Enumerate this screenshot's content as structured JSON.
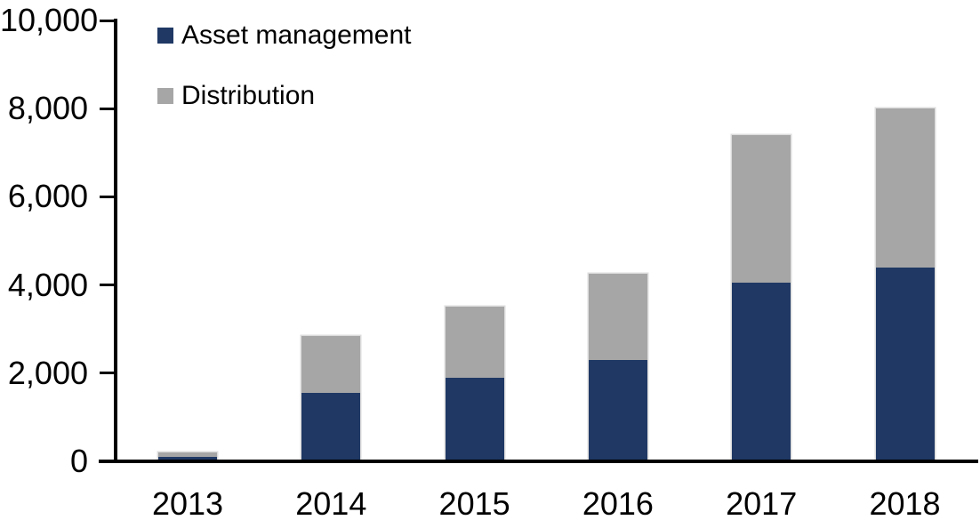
{
  "chart_data": {
    "type": "bar",
    "stacked": true,
    "title": "",
    "categories": [
      "2013",
      "2014",
      "2015",
      "2016",
      "2017",
      "2018"
    ],
    "series": [
      {
        "name": "Asset management",
        "color": "#1F3864",
        "values": [
          100,
          1550,
          1900,
          2300,
          4050,
          4400
        ]
      },
      {
        "name": "Distribution",
        "color": "#A6A6A6",
        "values": [
          100,
          1300,
          1600,
          1950,
          3350,
          3600
        ]
      }
    ],
    "totals": [
      200,
      2850,
      3500,
      4250,
      7400,
      8000
    ],
    "xlabel": "",
    "ylabel": "",
    "ylim": [
      0,
      10000
    ],
    "yticks": {
      "values": [
        0,
        2000,
        4000,
        6000,
        8000,
        10000
      ],
      "labels": [
        "0",
        "2,000",
        "4,000",
        "6,000",
        "8,000",
        "10,000"
      ]
    },
    "grid": false,
    "legend_position": "top-left",
    "background_color": "#FFFFFF",
    "axis_color": "#000000",
    "bar_outline_color": "#DCDCDC"
  }
}
